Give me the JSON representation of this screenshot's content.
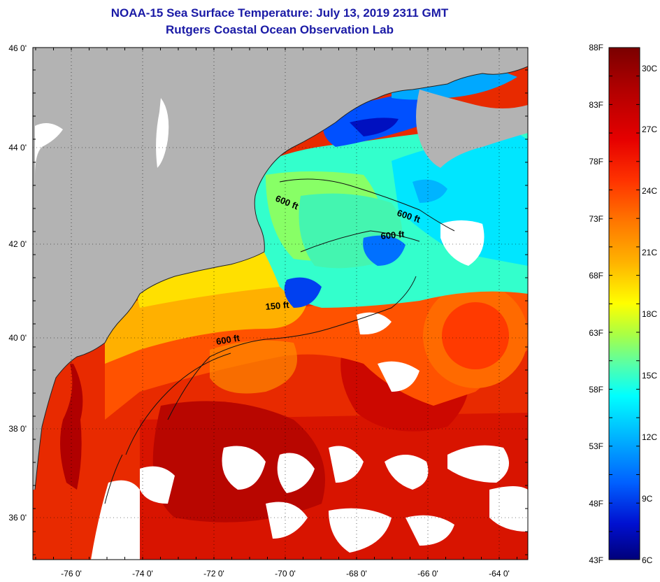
{
  "header": {
    "title": "NOAA-15 Sea Surface Temperature:  July 13, 2019 2311 GMT",
    "subtitle": "Rutgers Coastal Ocean Observation Lab"
  },
  "map": {
    "region": "Northwest Atlantic / Gulf of Maine",
    "lon_range": [
      -77,
      -63
    ],
    "lat_range": [
      35,
      46
    ],
    "lat_ticks": [
      "46 0'",
      "44 0'",
      "42 0'",
      "40 0'",
      "38 0'",
      "36 0'"
    ],
    "lon_ticks": [
      "-76 0'",
      "-74 0'",
      "-72 0'",
      "-70 0'",
      "-68 0'",
      "-66 0'",
      "-64 0'"
    ],
    "contour_labels": [
      "600 ft",
      "600 ft",
      "600 ft",
      "150 ft",
      "600 ft"
    ],
    "land_color": "#b3b3b3",
    "cloud_color": "#ffffff"
  },
  "colorbar": {
    "fahrenheit_labels": [
      "88F",
      "83F",
      "78F",
      "73F",
      "68F",
      "63F",
      "58F",
      "53F",
      "48F",
      "43F"
    ],
    "celsius_labels": [
      "30C",
      "27C",
      "24C",
      "21C",
      "18C",
      "15C",
      "12C",
      "9C",
      "6C"
    ],
    "colors": [
      "#7a0000",
      "#b00000",
      "#e60000",
      "#ff3300",
      "#ff7700",
      "#ffb300",
      "#ffff00",
      "#aaff44",
      "#55ffaa",
      "#00ffff",
      "#00b4ff",
      "#0060ff",
      "#0010d0",
      "#00007a"
    ]
  }
}
